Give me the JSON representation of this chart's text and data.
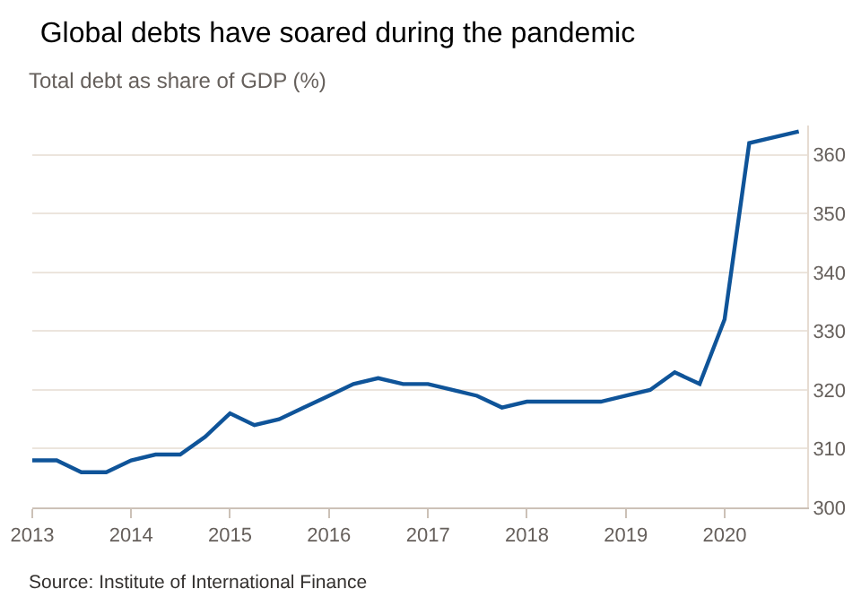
{
  "chart_data": {
    "type": "line",
    "title": "Global debts have soared during the pandemic",
    "subtitle": "Total debt as share of GDP (%)",
    "annotations": [
      "Source: Institute of International Finance"
    ],
    "x": [
      "2013-01",
      "2013-04",
      "2013-07",
      "2013-10",
      "2014-01",
      "2014-04",
      "2014-07",
      "2014-10",
      "2015-01",
      "2015-04",
      "2015-07",
      "2015-10",
      "2016-01",
      "2016-04",
      "2016-07",
      "2016-10",
      "2017-01",
      "2017-04",
      "2017-07",
      "2017-10",
      "2018-01",
      "2018-04",
      "2018-07",
      "2018-10",
      "2019-01",
      "2019-04",
      "2019-07",
      "2019-10",
      "2020-01",
      "2020-04",
      "2020-07",
      "2020-10"
    ],
    "series": [
      {
        "color": "#0f5499",
        "values": [
          308,
          308,
          306,
          306,
          308,
          309,
          309,
          312,
          316,
          314,
          315,
          317,
          319,
          321,
          322,
          321,
          321,
          320,
          319,
          317,
          318,
          318,
          318,
          318,
          319,
          320,
          323,
          321,
          332,
          362,
          363,
          364
        ]
      }
    ],
    "xlim": [
      "2013-01",
      "2020-11"
    ],
    "xticks": [
      {
        "value": "2013-01",
        "label": "2013"
      },
      {
        "value": "2014-01",
        "label": "2014"
      },
      {
        "value": "2015-01",
        "label": "2015"
      },
      {
        "value": "2016-01",
        "label": "2016"
      },
      {
        "value": "2017-01",
        "label": "2017"
      },
      {
        "value": "2018-01",
        "label": "2018"
      },
      {
        "value": "2019-01",
        "label": "2019"
      },
      {
        "value": "2020-01",
        "label": "2020"
      }
    ],
    "ylim": [
      300,
      365
    ],
    "yticks": [
      300,
      310,
      320,
      330,
      340,
      350,
      360
    ],
    "grid": "y",
    "marker": "none",
    "line_style": "solid"
  }
}
